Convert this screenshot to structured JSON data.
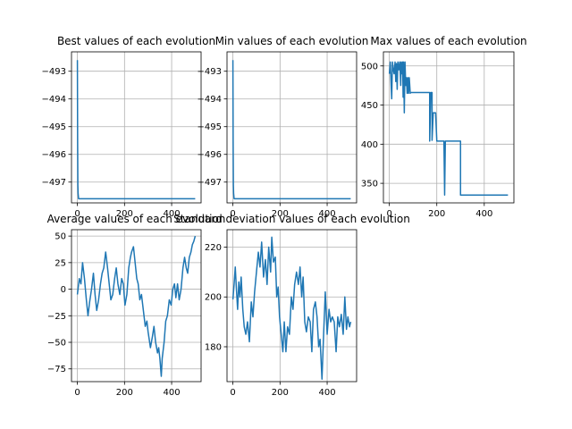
{
  "colors": {
    "line": "#1f77b4",
    "grid": "#b0b0b0",
    "axes": "#000000",
    "background": "#ffffff"
  },
  "chart_data": [
    {
      "type": "line",
      "title": "Best values of each evolution",
      "xlabel": "",
      "ylabel": "",
      "xlim": [
        -25,
        525
      ],
      "ylim": [
        -497.75,
        -492.3
      ],
      "xticks": [
        0,
        200,
        400
      ],
      "xtick_labels": [
        "0",
        "200",
        "400"
      ],
      "yticks": [
        -493,
        -494,
        -495,
        -496,
        -497
      ],
      "ytick_labels": [
        "−493",
        "−494",
        "−495",
        "−496",
        "−497"
      ],
      "grid": true,
      "series": [
        {
          "values_xy": [
            [
              0,
              -492.6
            ],
            [
              1,
              -495.5
            ],
            [
              2,
              -497.1
            ],
            [
              3,
              -497.4
            ],
            [
              4,
              -497.5
            ],
            [
              5,
              -497.6
            ],
            [
              500,
              -497.6
            ]
          ]
        }
      ]
    },
    {
      "type": "line",
      "title": "Min values of each evolution",
      "xlabel": "",
      "ylabel": "",
      "xlim": [
        -25,
        525
      ],
      "ylim": [
        -497.75,
        -492.3
      ],
      "xticks": [
        0,
        200,
        400
      ],
      "xtick_labels": [
        "0",
        "200",
        "400"
      ],
      "yticks": [
        -493,
        -494,
        -495,
        -496,
        -497
      ],
      "ytick_labels": [
        "−493",
        "−494",
        "−495",
        "−496",
        "−497"
      ],
      "grid": true,
      "series": [
        {
          "values_xy": [
            [
              0,
              -492.6
            ],
            [
              1,
              -495.5
            ],
            [
              2,
              -497.1
            ],
            [
              3,
              -497.4
            ],
            [
              4,
              -497.5
            ],
            [
              5,
              -497.6
            ],
            [
              500,
              -497.6
            ]
          ]
        }
      ]
    },
    {
      "type": "line",
      "title": "Max values of each evolution",
      "xlabel": "",
      "ylabel": "",
      "xlim": [
        -25,
        525
      ],
      "ylim": [
        325,
        518
      ],
      "xticks": [
        0,
        200,
        400
      ],
      "xtick_labels": [
        "0",
        "200",
        "400"
      ],
      "yticks": [
        350,
        400,
        450,
        500
      ],
      "ytick_labels": [
        "350",
        "400",
        "450",
        "500"
      ],
      "grid": true,
      "series": [
        {
          "values_xy": [
            [
              0,
              490
            ],
            [
              4,
              505
            ],
            [
              8,
              472
            ],
            [
              10,
              458
            ],
            [
              13,
              505
            ],
            [
              17,
              495
            ],
            [
              20,
              490
            ],
            [
              24,
              505
            ],
            [
              27,
              480
            ],
            [
              30,
              503
            ],
            [
              33,
              470
            ],
            [
              36,
              505
            ],
            [
              40,
              495
            ],
            [
              44,
              505
            ],
            [
              48,
              475
            ],
            [
              50,
              505
            ],
            [
              53,
              490
            ],
            [
              56,
              505
            ],
            [
              58,
              460
            ],
            [
              60,
              505
            ],
            [
              63,
              440
            ],
            [
              66,
              505
            ],
            [
              69,
              475
            ],
            [
              72,
              485
            ],
            [
              75,
              465
            ],
            [
              78,
              485
            ],
            [
              81,
              465
            ],
            [
              84,
              485
            ],
            [
              88,
              465
            ],
            [
              90,
              466
            ],
            [
              170,
              466
            ],
            [
              170,
              404
            ],
            [
              175,
              466
            ],
            [
              180,
              466
            ],
            [
              180,
              405
            ],
            [
              185,
              440
            ],
            [
              195,
              440
            ],
            [
              200,
              404
            ],
            [
              230,
              404
            ],
            [
              233,
              335
            ],
            [
              236,
              404
            ],
            [
              300,
              404
            ],
            [
              300,
              335
            ],
            [
              500,
              335
            ]
          ]
        }
      ]
    },
    {
      "type": "line",
      "title": "Average values of each evolution",
      "xlabel": "",
      "ylabel": "",
      "xlim": [
        -25,
        525
      ],
      "ylim": [
        -87,
        56
      ],
      "xticks": [
        0,
        200,
        400
      ],
      "xtick_labels": [
        "0",
        "200",
        "400"
      ],
      "yticks": [
        50,
        25,
        0,
        -25,
        -50,
        -75
      ],
      "ytick_labels": [
        "50",
        "25",
        "0",
        "−25",
        "−50",
        "−75"
      ],
      "grid": true,
      "series": [
        {
          "values_xy": [
            [
              0,
              -5
            ],
            [
              8,
              10
            ],
            [
              15,
              5
            ],
            [
              22,
              25
            ],
            [
              30,
              10
            ],
            [
              38,
              -10
            ],
            [
              45,
              -25
            ],
            [
              52,
              -12
            ],
            [
              60,
              0
            ],
            [
              68,
              15
            ],
            [
              75,
              -5
            ],
            [
              82,
              -20
            ],
            [
              90,
              -10
            ],
            [
              98,
              5
            ],
            [
              105,
              15
            ],
            [
              112,
              20
            ],
            [
              120,
              35
            ],
            [
              128,
              20
            ],
            [
              135,
              5
            ],
            [
              142,
              -10
            ],
            [
              150,
              -5
            ],
            [
              158,
              10
            ],
            [
              165,
              20
            ],
            [
              172,
              5
            ],
            [
              180,
              -5
            ],
            [
              188,
              10
            ],
            [
              195,
              5
            ],
            [
              202,
              -15
            ],
            [
              210,
              -5
            ],
            [
              218,
              20
            ],
            [
              225,
              30
            ],
            [
              230,
              35
            ],
            [
              238,
              40
            ],
            [
              245,
              25
            ],
            [
              252,
              10
            ],
            [
              258,
              5
            ],
            [
              265,
              -10
            ],
            [
              272,
              -5
            ],
            [
              280,
              -20
            ],
            [
              288,
              -35
            ],
            [
              295,
              -30
            ],
            [
              300,
              -40
            ],
            [
              310,
              -55
            ],
            [
              318,
              -45
            ],
            [
              325,
              -35
            ],
            [
              332,
              -50
            ],
            [
              340,
              -60
            ],
            [
              345,
              -55
            ],
            [
              350,
              -65
            ],
            [
              356,
              -82
            ],
            [
              360,
              -65
            ],
            [
              368,
              -50
            ],
            [
              375,
              -30
            ],
            [
              382,
              -25
            ],
            [
              390,
              -10
            ],
            [
              398,
              -15
            ],
            [
              405,
              0
            ],
            [
              412,
              5
            ],
            [
              418,
              -8
            ],
            [
              425,
              5
            ],
            [
              432,
              -10
            ],
            [
              440,
              0
            ],
            [
              448,
              20
            ],
            [
              455,
              30
            ],
            [
              462,
              20
            ],
            [
              468,
              15
            ],
            [
              475,
              30
            ],
            [
              482,
              35
            ],
            [
              488,
              42
            ],
            [
              494,
              45
            ],
            [
              500,
              50
            ]
          ]
        }
      ]
    },
    {
      "type": "line",
      "title": "Standard deviation values of each evolution",
      "xlabel": "",
      "ylabel": "",
      "xlim": [
        -25,
        525
      ],
      "ylim": [
        166,
        227
      ],
      "xticks": [
        0,
        200,
        400
      ],
      "xtick_labels": [
        "0",
        "200",
        "400"
      ],
      "yticks": [
        180,
        200,
        220
      ],
      "ytick_labels": [
        "180",
        "200",
        "220"
      ],
      "grid": true,
      "series": [
        {
          "values_xy": [
            [
              0,
              199
            ],
            [
              5,
              205
            ],
            [
              10,
              212
            ],
            [
              15,
              203
            ],
            [
              20,
              195
            ],
            [
              25,
              206
            ],
            [
              30,
              200
            ],
            [
              35,
              208
            ],
            [
              42,
              195
            ],
            [
              48,
              188
            ],
            [
              55,
              185
            ],
            [
              62,
              190
            ],
            [
              70,
              182
            ],
            [
              78,
              198
            ],
            [
              85,
              192
            ],
            [
              92,
              202
            ],
            [
              100,
              210
            ],
            [
              108,
              218
            ],
            [
              115,
              212
            ],
            [
              122,
              222
            ],
            [
              130,
              208
            ],
            [
              138,
              215
            ],
            [
              145,
              205
            ],
            [
              152,
              220
            ],
            [
              160,
              210
            ],
            [
              165,
              224
            ],
            [
              172,
              214
            ],
            [
              180,
              216
            ],
            [
              186,
              200
            ],
            [
              192,
              204
            ],
            [
              198,
              192
            ],
            [
              205,
              185
            ],
            [
              212,
              178
            ],
            [
              218,
              190
            ],
            [
              225,
              178
            ],
            [
              232,
              188
            ],
            [
              240,
              185
            ],
            [
              248,
              200
            ],
            [
              255,
              195
            ],
            [
              262,
              205
            ],
            [
              270,
              210
            ],
            [
              278,
              205
            ],
            [
              285,
              212
            ],
            [
              292,
              200
            ],
            [
              298,
              208
            ],
            [
              305,
              190
            ],
            [
              312,
              186
            ],
            [
              320,
              192
            ],
            [
              328,
              190
            ],
            [
              335,
              178
            ],
            [
              342,
              195
            ],
            [
              350,
              198
            ],
            [
              357,
              192
            ],
            [
              364,
              180
            ],
            [
              370,
              183
            ],
            [
              378,
              167
            ],
            [
              385,
              185
            ],
            [
              392,
              202
            ],
            [
              400,
              185
            ],
            [
              408,
              195
            ],
            [
              415,
              190
            ],
            [
              422,
              192
            ],
            [
              430,
              190
            ],
            [
              438,
              178
            ],
            [
              445,
              192
            ],
            [
              452,
              188
            ],
            [
              460,
              193
            ],
            [
              468,
              185
            ],
            [
              475,
              200
            ],
            [
              482,
              187
            ],
            [
              488,
              192
            ],
            [
              495,
              188
            ],
            [
              500,
              190
            ]
          ]
        }
      ]
    }
  ]
}
